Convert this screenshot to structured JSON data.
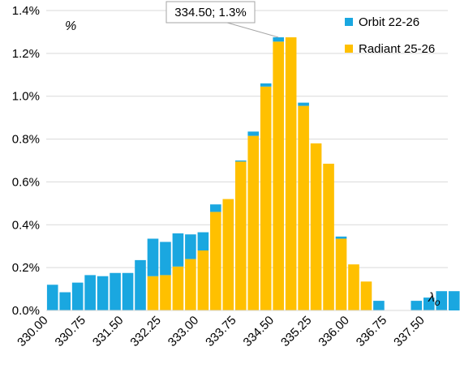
{
  "chart_data": {
    "type": "bar",
    "stacked": true,
    "x_start": 330.0,
    "x_step": 0.25,
    "x_range": [
      330.0,
      338.0
    ],
    "xtick_labels": [
      "330.00",
      "330.75",
      "331.50",
      "332.25",
      "333.00",
      "333.75",
      "334.50",
      "335.25",
      "336.00",
      "336.75",
      "337.50"
    ],
    "ylim": [
      0,
      1.4
    ],
    "ytick_labels": [
      "0.0%",
      "0.2%",
      "0.4%",
      "0.6%",
      "0.8%",
      "1.0%",
      "1.2%",
      "1.4%"
    ],
    "y_unit_label": "%",
    "x_unit_label": "λ",
    "x_unit_sub": "o",
    "grid": "horizontal",
    "legend_position": "top-right",
    "series": [
      {
        "name": "Orbit 22-26",
        "color": "#1aa7e0",
        "totals": [
          0.12,
          0.085,
          0.13,
          0.165,
          0.16,
          0.175,
          0.175,
          0.235,
          0.335,
          0.32,
          0.36,
          0.355,
          0.365,
          0.495,
          0.52,
          0.7,
          0.835,
          1.06,
          1.275,
          1.275,
          0.97,
          0.78,
          0.685,
          0.345,
          0.215,
          0.135,
          0.045,
          0,
          0,
          0.045,
          0.06,
          0.09,
          0.09
        ]
      },
      {
        "name": "Radiant 25-26",
        "color": "#ffc000",
        "values": [
          0,
          0,
          0,
          0,
          0,
          0,
          0,
          0,
          0.16,
          0.165,
          0.205,
          0.24,
          0.28,
          0.46,
          0.52,
          0.695,
          0.815,
          1.045,
          1.255,
          1.275,
          0.955,
          0.78,
          0.685,
          0.335,
          0.215,
          0.135,
          0,
          0,
          0,
          0,
          0,
          0,
          0
        ]
      }
    ],
    "annotation": {
      "text": "334.50; 1.3%",
      "x": 334.5,
      "y": 1.275
    }
  }
}
